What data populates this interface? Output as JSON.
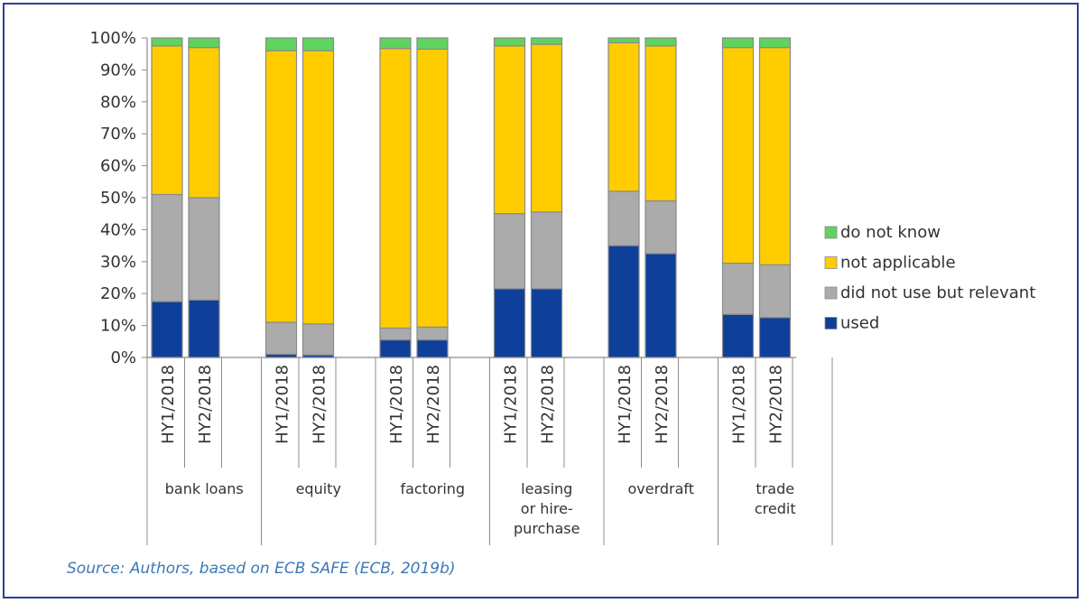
{
  "chart_data": {
    "type": "bar",
    "stacked": true,
    "percent": true,
    "groups": [
      "bank loans",
      "equity",
      "factoring",
      "leasing or hire-purchase",
      "overdraft",
      "trade credit"
    ],
    "group_label_lines": [
      [
        "bank loans"
      ],
      [
        "equity"
      ],
      [
        "factoring"
      ],
      [
        "leasing",
        "or hire-",
        "purchase"
      ],
      [
        "overdraft"
      ],
      [
        "trade",
        "credit"
      ]
    ],
    "periods": [
      "HY1/2018",
      "HY2/2018"
    ],
    "series": [
      {
        "name": "used",
        "color": "#0e3f9b",
        "values": [
          [
            17.5,
            18.0
          ],
          [
            1.0,
            0.8
          ],
          [
            5.5,
            5.5
          ],
          [
            21.5,
            21.5
          ],
          [
            35.0,
            32.5
          ],
          [
            13.5,
            12.5
          ]
        ]
      },
      {
        "name": "did not use but relevant",
        "color": "#ababab",
        "values": [
          [
            33.5,
            32.0
          ],
          [
            10.0,
            9.7
          ],
          [
            3.7,
            4.0
          ],
          [
            23.5,
            24.0
          ],
          [
            17.0,
            16.5
          ],
          [
            16.0,
            16.5
          ]
        ]
      },
      {
        "name": "not applicable",
        "color": "#ffcc00",
        "values": [
          [
            46.5,
            47.0
          ],
          [
            85.0,
            85.5
          ],
          [
            87.5,
            87.0
          ],
          [
            52.5,
            52.5
          ],
          [
            46.5,
            48.5
          ],
          [
            67.5,
            68.0
          ]
        ]
      },
      {
        "name": "do not know",
        "color": "#5fd25f",
        "values": [
          [
            2.5,
            3.0
          ],
          [
            4.0,
            4.0
          ],
          [
            3.3,
            3.5
          ],
          [
            2.5,
            2.0
          ],
          [
            1.5,
            2.5
          ],
          [
            3.0,
            3.0
          ]
        ]
      }
    ],
    "legend_order": [
      "do not know",
      "not applicable",
      "did not use but relevant",
      "used"
    ],
    "legend_position": "right",
    "yticks": [
      "0%",
      "10%",
      "20%",
      "30%",
      "40%",
      "50%",
      "60%",
      "70%",
      "80%",
      "90%",
      "100%"
    ],
    "ylim": [
      0,
      100
    ],
    "grid": false
  },
  "source_note": "Source: Authors, based on ECB SAFE (ECB, 2019b)"
}
